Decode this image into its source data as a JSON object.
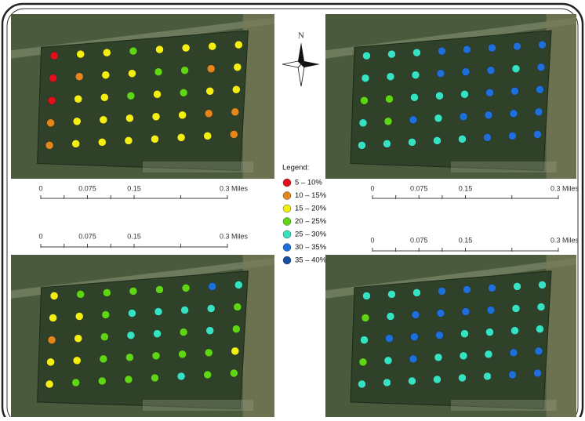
{
  "north": "N",
  "legend": {
    "title": "Legend:",
    "items": [
      {
        "label": "5 – 10%",
        "color": "#e3101b"
      },
      {
        "label": "10 – 15%",
        "color": "#e4861a"
      },
      {
        "label": "15 – 20%",
        "color": "#f4ef12"
      },
      {
        "label": "20 – 25%",
        "color": "#5fd613"
      },
      {
        "label": "25 – 30%",
        "color": "#35e3c2"
      },
      {
        "label": "30 – 35%",
        "color": "#1d6fdc"
      },
      {
        "label": "35 – 40%",
        "color": "#184fa6"
      }
    ]
  },
  "scale_bars": [
    {
      "labels": [
        "0",
        "0.075",
        "0.15",
        "0.3 Miles"
      ]
    },
    {
      "labels": [
        "0",
        "0.075",
        "0.15",
        "0.3 Miles"
      ]
    },
    {
      "labels": [
        "0",
        "0.075",
        "0.15",
        "0.3 Miles"
      ]
    },
    {
      "labels": [
        "0",
        "0.075",
        "0.15",
        "0.3 Miles"
      ]
    }
  ]
}
